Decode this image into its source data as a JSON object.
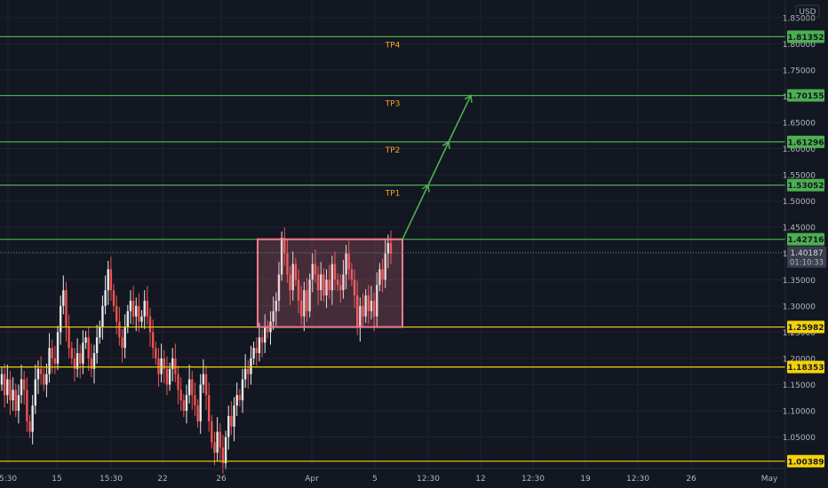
{
  "currency": "USD",
  "colors": {
    "background": "#131722",
    "grid": "#1f2330",
    "axis_text": "#b2b5be",
    "up_candle": "#e8e8e8",
    "down_candle": "#ef5350",
    "green_level": "#4caf50",
    "yellow_level": "#f5d20a",
    "target_label": "#f5a623",
    "box_border": "#f77c8e",
    "box_fill": "rgba(247,124,142,0.22)",
    "arrow": "#4caf50",
    "price_tag": "#3a3f4c"
  },
  "chart_data": {
    "type": "candlestick",
    "ylim": [
      0.99,
      1.87
    ],
    "y_ticks": [
      "1.05000",
      "1.10000",
      "1.15000",
      "1.20000",
      "1.25000",
      "1.30000",
      "1.35000",
      "1.40000",
      "1.45000",
      "1.50000",
      "1.55000",
      "1.60000",
      "1.65000",
      "1.70000",
      "1.75000",
      "1.80000",
      "1.85000"
    ],
    "x_ticks": [
      "5:30",
      "15",
      "15:30",
      "22",
      "26",
      "Apr",
      "5",
      "12:30",
      "12",
      "12:30",
      "19",
      "12:30",
      "26",
      "May"
    ],
    "levels": [
      {
        "price": 1.81352,
        "label": "1.81352",
        "target": "TP4",
        "kind": "green"
      },
      {
        "price": 1.70155,
        "label": "1.70155",
        "target": "TP3",
        "kind": "green"
      },
      {
        "price": 1.61296,
        "label": "1.61296",
        "target": "TP2",
        "kind": "green"
      },
      {
        "price": 1.53052,
        "label": "1.53052",
        "target": "TP1",
        "kind": "green"
      },
      {
        "price": 1.42716,
        "label": "1.42716",
        "target": "",
        "kind": "green"
      },
      {
        "price": 1.25982,
        "label": "1.25982",
        "target": "",
        "kind": "yellow"
      },
      {
        "price": 1.18353,
        "label": "1.18353",
        "target": "",
        "kind": "yellow"
      },
      {
        "price": 1.00389,
        "label": "1.00389",
        "target": "",
        "kind": "yellow"
      }
    ],
    "current_price": {
      "price": 1.40187,
      "label": "1.40187",
      "countdown": "01:10:33"
    },
    "range_box": {
      "top": 1.42716,
      "bottom": 1.25982
    },
    "projection": [
      1.42716,
      1.53052,
      1.61296,
      1.70155
    ],
    "candle_count": 140,
    "closes": [
      1.17,
      1.13,
      1.16,
      1.12,
      1.14,
      1.1,
      1.13,
      1.16,
      1.14,
      1.08,
      1.06,
      1.11,
      1.16,
      1.18,
      1.17,
      1.15,
      1.17,
      1.22,
      1.2,
      1.19,
      1.25,
      1.3,
      1.33,
      1.26,
      1.22,
      1.2,
      1.18,
      1.21,
      1.19,
      1.23,
      1.24,
      1.2,
      1.18,
      1.21,
      1.24,
      1.26,
      1.3,
      1.33,
      1.37,
      1.33,
      1.3,
      1.27,
      1.24,
      1.22,
      1.26,
      1.29,
      1.31,
      1.28,
      1.3,
      1.27,
      1.28,
      1.31,
      1.28,
      1.25,
      1.22,
      1.2,
      1.17,
      1.2,
      1.18,
      1.15,
      1.18,
      1.2,
      1.17,
      1.14,
      1.12,
      1.1,
      1.13,
      1.16,
      1.13,
      1.11,
      1.08,
      1.15,
      1.17,
      1.13,
      1.08,
      1.04,
      1.02,
      1.06,
      1.03,
      1.0,
      1.05,
      1.09,
      1.07,
      1.11,
      1.13,
      1.12,
      1.16,
      1.18,
      1.17,
      1.2,
      1.22,
      1.21,
      1.24,
      1.23,
      1.26,
      1.25,
      1.27,
      1.29,
      1.31,
      1.36,
      1.43,
      1.4,
      1.36,
      1.33,
      1.38,
      1.35,
      1.31,
      1.28,
      1.33,
      1.29,
      1.35,
      1.38,
      1.36,
      1.33,
      1.36,
      1.32,
      1.35,
      1.33,
      1.38,
      1.35,
      1.34,
      1.33,
      1.36,
      1.4,
      1.37,
      1.35,
      1.32,
      1.26,
      1.3,
      1.28,
      1.32,
      1.29,
      1.31,
      1.28,
      1.34,
      1.37,
      1.35,
      1.4,
      1.42,
      1.4
    ]
  }
}
